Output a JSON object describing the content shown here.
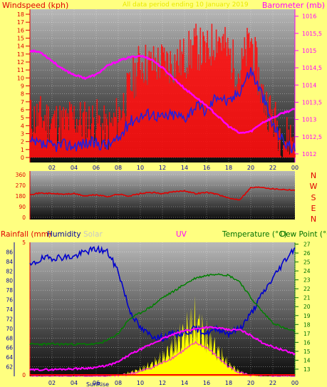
{
  "colors": {
    "page_bg": "#ffff80",
    "panel_top": "#b8b8b8",
    "panel_bottom": "#0c0c0c",
    "grid": "#ffffff",
    "wind_max": "#ff1010",
    "wind_avg": "#2020e0",
    "barometer": "#ff00ff",
    "wind_dir": "#e00000",
    "rain": "#ff0000",
    "humidity": "#0000cc",
    "solar": "#ffff00",
    "uv": "#ff00ff",
    "temperature": "#008000",
    "dew_point": "#008000",
    "label_red": "#e00000",
    "label_magenta": "#ff00ff",
    "label_blue": "#0000a0",
    "label_green": "#007000",
    "label_solar": "#c8c8c8",
    "yellow_title": "#e8e800"
  },
  "top_chart": {
    "left_label": "Windspeed (kph)",
    "right_label": "Barometer (mb)",
    "title": "All data period ending 10 January 2019"
  },
  "mid_chart": {
    "compass": [
      "N",
      "W",
      "S",
      "E",
      "N"
    ]
  },
  "bottom_chart": {
    "label_rain": "Rainfall (mm)",
    "label_humidity": "Humidity",
    "label_solar": "Solar",
    "label_uv": "UV",
    "label_temp": "Temperature (°C)",
    "label_dew": "Dew Point (°C",
    "sunrise": "SunRise"
  },
  "chart_data": [
    {
      "type": "line",
      "name": "wind-and-barometer",
      "x_ticks": [
        "02",
        "04",
        "06",
        "08",
        "10",
        "12",
        "14",
        "16",
        "18",
        "20",
        "22",
        "00"
      ],
      "x": [
        0,
        1,
        2,
        3,
        4,
        5,
        6,
        7,
        8,
        9,
        10,
        11,
        12,
        13,
        14,
        15,
        16,
        17,
        18,
        19,
        20,
        21,
        22,
        23,
        24
      ],
      "xlim": [
        0,
        24
      ],
      "ylim_left": [
        0,
        18
      ],
      "yticks_left": [
        "0",
        "1",
        "2",
        "3",
        "4",
        "5",
        "6",
        "7",
        "8",
        "9",
        "10",
        "11",
        "12",
        "13",
        "14",
        "15",
        "16",
        "17",
        "18"
      ],
      "ylim_right": [
        1011.75,
        1016.2
      ],
      "yticks_right": [
        "1012",
        "1012,5",
        "1013",
        "1013,5",
        "1014",
        "1014,5",
        "1015",
        "1015,5",
        "1016"
      ],
      "series": [
        {
          "axis": "left",
          "values": [
            4.8,
            5.0,
            4.6,
            4.2,
            5.0,
            4.4,
            4.6,
            3.2,
            5.2,
            8.5,
            12.0,
            11.5,
            12.0,
            11.8,
            12.5,
            14.0,
            13.0,
            15.5,
            13.0,
            10.5,
            15.0,
            8.0,
            5.0,
            2.4,
            2.8
          ]
        },
        {
          "axis": "left",
          "values": [
            1.8,
            1.6,
            1.4,
            1.6,
            1.5,
            1.8,
            1.8,
            1.6,
            2.2,
            4.5,
            5.2,
            5.6,
            5.0,
            5.4,
            5.0,
            6.5,
            5.8,
            8.0,
            6.8,
            8.5,
            11.0,
            8.0,
            4.0,
            2.0,
            1.0
          ]
        },
        {
          "axis": "right",
          "values": [
            1015.0,
            1014.95,
            1014.7,
            1014.45,
            1014.3,
            1014.2,
            1014.3,
            1014.55,
            1014.7,
            1014.8,
            1014.85,
            1014.75,
            1014.5,
            1014.2,
            1013.9,
            1013.65,
            1013.4,
            1013.1,
            1012.8,
            1012.6,
            1012.65,
            1012.9,
            1013.05,
            1013.2,
            1013.3
          ]
        }
      ]
    },
    {
      "type": "line",
      "name": "wind-direction",
      "xlim": [
        0,
        24
      ],
      "ylim": [
        0,
        360
      ],
      "yticks": [
        "0",
        "90",
        "180",
        "270",
        "360"
      ],
      "x": [
        0,
        1,
        2,
        3,
        4,
        5,
        6,
        7,
        8,
        9,
        10,
        11,
        12,
        13,
        14,
        15,
        16,
        17,
        18,
        19,
        20,
        21,
        22,
        23,
        24
      ],
      "values": [
        195,
        205,
        200,
        195,
        200,
        180,
        190,
        175,
        195,
        180,
        200,
        210,
        200,
        215,
        225,
        200,
        210,
        195,
        160,
        150,
        250,
        255,
        240,
        235,
        230
      ]
    },
    {
      "type": "line",
      "name": "rain-humidity-solar-uv-temperature-dew",
      "x_ticks": [
        "02",
        "04",
        "06",
        "08",
        "10",
        "12",
        "14",
        "16",
        "18",
        "20",
        "22",
        "00"
      ],
      "xlim": [
        0,
        24
      ],
      "rain_ylim": [
        0,
        5
      ],
      "rain_ticks": [
        "0",
        "5"
      ],
      "humidity_ylim": [
        60,
        88
      ],
      "humidity_ticks": [
        "62",
        "64",
        "66",
        "68",
        "70",
        "72",
        "74",
        "76",
        "78",
        "80",
        "82",
        "84",
        "86"
      ],
      "temp_ylim": [
        12.2,
        27.2
      ],
      "temp_ticks": [
        "13",
        "14",
        "15",
        "16",
        "17",
        "18",
        "19",
        "20",
        "21",
        "22",
        "23",
        "24",
        "25",
        "26",
        "27"
      ],
      "x": [
        0,
        1,
        2,
        3,
        4,
        5,
        6,
        7,
        8,
        9,
        10,
        11,
        12,
        13,
        14,
        15,
        16,
        17,
        18,
        19,
        20,
        21,
        22,
        23,
        24
      ],
      "series": [
        {
          "axis": "humidity",
          "values": [
            83.0,
            84.5,
            84.8,
            84.9,
            85.0,
            86.0,
            86.6,
            86.0,
            82.0,
            74.0,
            70.0,
            68.5,
            68.0,
            69.0,
            69.0,
            70.0,
            69.0,
            70.0,
            69.0,
            70.0,
            73.0,
            77.0,
            80.5,
            84.0,
            87.0
          ]
        },
        {
          "axis": "temperature",
          "values": [
            15.8,
            15.8,
            15.8,
            15.8,
            15.8,
            15.8,
            15.8,
            16.2,
            17.0,
            18.6,
            19.3,
            20.0,
            21.0,
            21.7,
            22.5,
            23.2,
            23.5,
            23.7,
            23.5,
            22.8,
            21.0,
            19.5,
            18.2,
            17.6,
            17.2
          ]
        },
        {
          "axis": "temperature",
          "values": [
            12.9,
            12.95,
            12.95,
            13.0,
            13.05,
            13.1,
            13.2,
            13.4,
            13.8,
            14.6,
            15.2,
            15.8,
            16.4,
            16.9,
            17.3,
            17.5,
            17.7,
            17.6,
            17.4,
            17.4,
            16.8,
            16.0,
            15.5,
            15.1,
            14.7
          ]
        },
        {
          "axis": "rain",
          "values": [
            0,
            0,
            0,
            0,
            0,
            0,
            0,
            0,
            0,
            0,
            0,
            0,
            0,
            0,
            0,
            0,
            0,
            0,
            0,
            0,
            0,
            0,
            0,
            0,
            0
          ]
        },
        {
          "axis": "humidity",
          "values": [
            60,
            60,
            60,
            60,
            60,
            60,
            60,
            60,
            60.2,
            60.8,
            61.5,
            62.5,
            64.0,
            66.5,
            69.5,
            72.0,
            68.5,
            65.5,
            62.5,
            61.0,
            60.2,
            60,
            60,
            60,
            60
          ]
        },
        {
          "axis": "humidity",
          "values": [
            60,
            60,
            60,
            60,
            60,
            60,
            60,
            60,
            60.1,
            60.5,
            61.0,
            61.8,
            62.8,
            64.0,
            65.5,
            67.0,
            66.0,
            64.0,
            62.0,
            60.8,
            60.2,
            60,
            60,
            60,
            60
          ]
        }
      ]
    }
  ]
}
